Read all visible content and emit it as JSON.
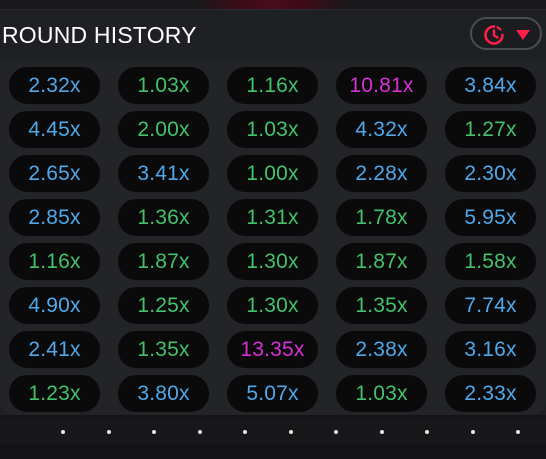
{
  "header": {
    "title": "ROUND HISTORY",
    "filter_button": {
      "icon_clock": "history-clock-icon",
      "icon_arrow": "dropdown-triangle-icon",
      "accent": "#ff1f4b"
    }
  },
  "colors": {
    "blue": "#4fa8ea",
    "green": "#43c16b",
    "magenta": "#d92fd9"
  },
  "history": [
    [
      {
        "value": "2.32x",
        "color": "blue"
      },
      {
        "value": "1.03x",
        "color": "green"
      },
      {
        "value": "1.16x",
        "color": "green"
      },
      {
        "value": "10.81x",
        "color": "magenta"
      },
      {
        "value": "3.84x",
        "color": "blue"
      }
    ],
    [
      {
        "value": "4.45x",
        "color": "blue"
      },
      {
        "value": "2.00x",
        "color": "green"
      },
      {
        "value": "1.03x",
        "color": "green"
      },
      {
        "value": "4.32x",
        "color": "blue"
      },
      {
        "value": "1.27x",
        "color": "green"
      }
    ],
    [
      {
        "value": "2.65x",
        "color": "blue"
      },
      {
        "value": "3.41x",
        "color": "blue"
      },
      {
        "value": "1.00x",
        "color": "green"
      },
      {
        "value": "2.28x",
        "color": "blue"
      },
      {
        "value": "2.30x",
        "color": "blue"
      }
    ],
    [
      {
        "value": "2.85x",
        "color": "blue"
      },
      {
        "value": "1.36x",
        "color": "green"
      },
      {
        "value": "1.31x",
        "color": "green"
      },
      {
        "value": "1.78x",
        "color": "green"
      },
      {
        "value": "5.95x",
        "color": "blue"
      }
    ],
    [
      {
        "value": "1.16x",
        "color": "green"
      },
      {
        "value": "1.87x",
        "color": "green"
      },
      {
        "value": "1.30x",
        "color": "green"
      },
      {
        "value": "1.87x",
        "color": "green"
      },
      {
        "value": "1.58x",
        "color": "green"
      }
    ],
    [
      {
        "value": "4.90x",
        "color": "blue"
      },
      {
        "value": "1.25x",
        "color": "green"
      },
      {
        "value": "1.30x",
        "color": "green"
      },
      {
        "value": "1.35x",
        "color": "green"
      },
      {
        "value": "7.74x",
        "color": "blue"
      }
    ],
    [
      {
        "value": "2.41x",
        "color": "blue"
      },
      {
        "value": "1.35x",
        "color": "green"
      },
      {
        "value": "13.35x",
        "color": "magenta"
      },
      {
        "value": "2.38x",
        "color": "blue"
      },
      {
        "value": "3.16x",
        "color": "blue"
      }
    ],
    [
      {
        "value": "1.23x",
        "color": "green"
      },
      {
        "value": "3.80x",
        "color": "blue"
      },
      {
        "value": "5.07x",
        "color": "blue"
      },
      {
        "value": "1.03x",
        "color": "green"
      },
      {
        "value": "2.33x",
        "color": "blue"
      }
    ]
  ],
  "pager": {
    "page_count": 12
  }
}
